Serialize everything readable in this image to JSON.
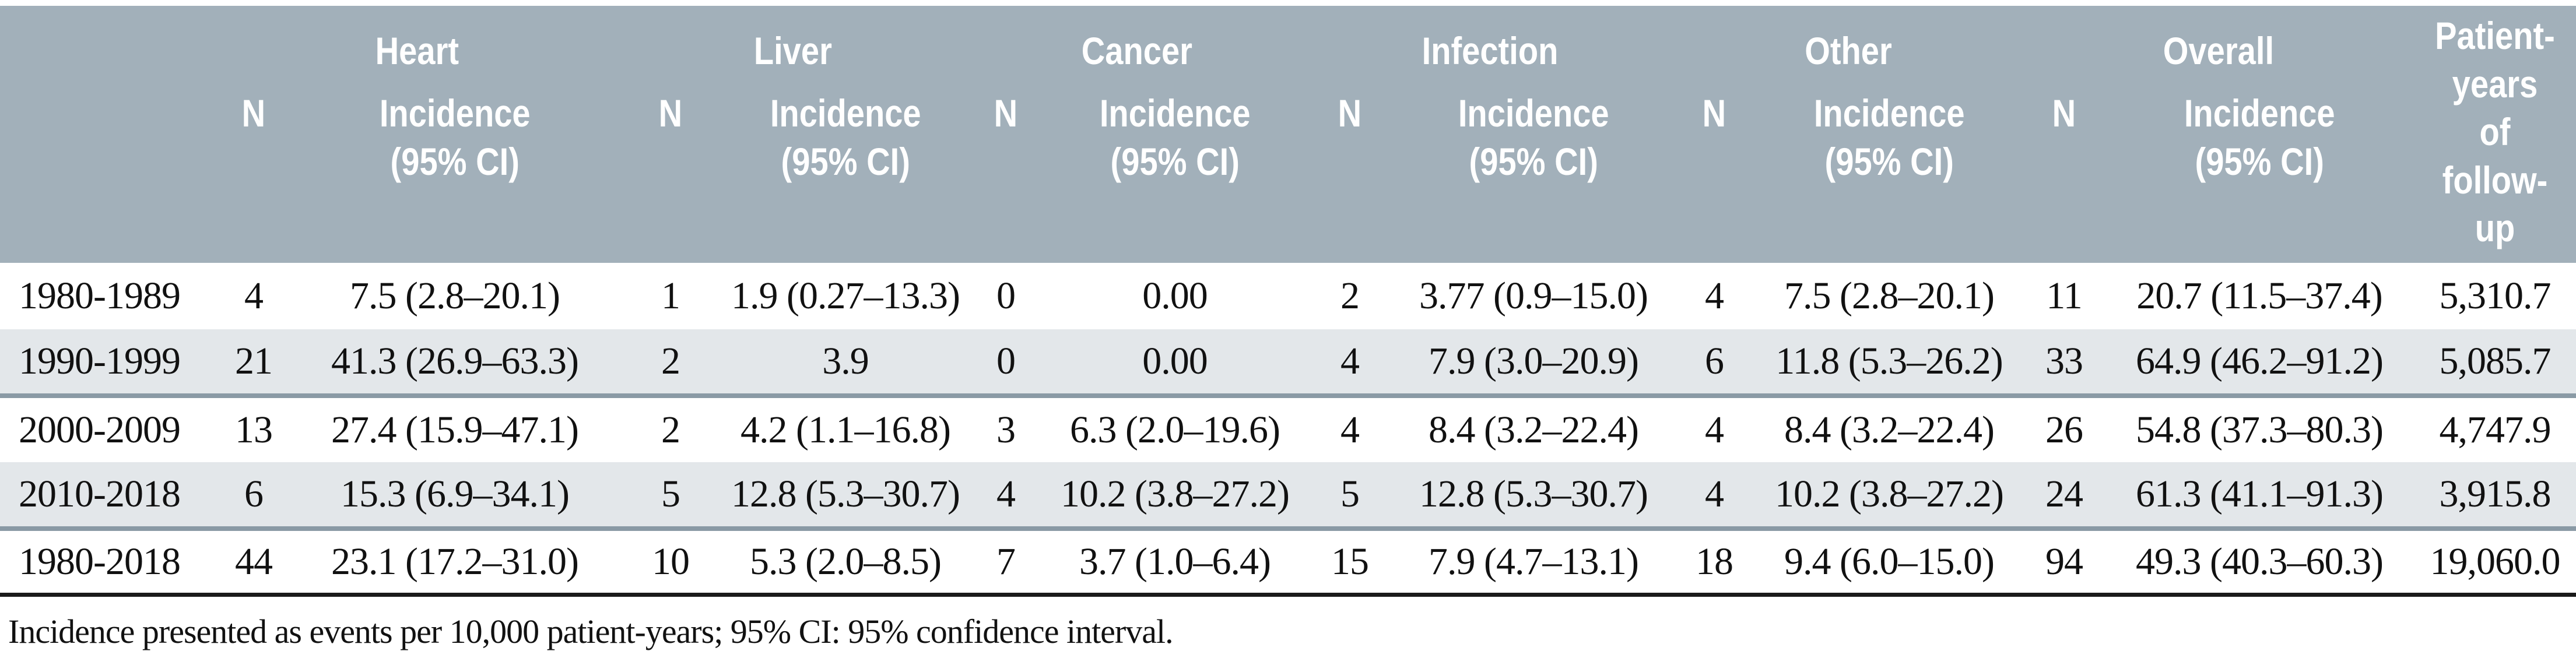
{
  "colors": {
    "header_bg": "#a2b0ba",
    "header_text": "#ffffff",
    "row_alt_bg": "#e3e7ea",
    "divider": "#8a9aa5",
    "bottom_rule": "#1a1a1a"
  },
  "table": {
    "groups": {
      "heart": "Heart",
      "liver": "Liver",
      "cancer": "Cancer",
      "infection": "Infection",
      "other": "Other",
      "overall": "Overall"
    },
    "sub_headers": {
      "n": "N",
      "incidence": "Incidence\n(95% CI)",
      "patient_years": "Patient-years\nof follow-up"
    },
    "rows": [
      {
        "period": "1980-1989",
        "heart_n": "4",
        "heart_inc": "7.5 (2.8–20.1)",
        "liver_n": "1",
        "liver_inc": "1.9 (0.27–13.3)",
        "cancer_n": "0",
        "cancer_inc": "0.00",
        "infection_n": "2",
        "infection_inc": "3.77 (0.9–15.0)",
        "other_n": "4",
        "other_inc": "7.5 (2.8–20.1)",
        "overall_n": "11",
        "overall_inc": "20.7 (11.5–37.4)",
        "py": "5,310.7"
      },
      {
        "period": "1990-1999",
        "heart_n": "21",
        "heart_inc": "41.3 (26.9–63.3)",
        "liver_n": "2",
        "liver_inc": "3.9",
        "cancer_n": "0",
        "cancer_inc": "0.00",
        "infection_n": "4",
        "infection_inc": "7.9 (3.0–20.9)",
        "other_n": "6",
        "other_inc": "11.8 (5.3–26.2)",
        "overall_n": "33",
        "overall_inc": "64.9 (46.2–91.2)",
        "py": "5,085.7"
      },
      {
        "period": "2000-2009",
        "heart_n": "13",
        "heart_inc": "27.4 (15.9–47.1)",
        "liver_n": "2",
        "liver_inc": "4.2 (1.1–16.8)",
        "cancer_n": "3",
        "cancer_inc": "6.3 (2.0–19.6)",
        "infection_n": "4",
        "infection_inc": "8.4 (3.2–22.4)",
        "other_n": "4",
        "other_inc": "8.4 (3.2–22.4)",
        "overall_n": "26",
        "overall_inc": "54.8 (37.3–80.3)",
        "py": "4,747.9"
      },
      {
        "period": "2010-2018",
        "heart_n": "6",
        "heart_inc": "15.3 (6.9–34.1)",
        "liver_n": "5",
        "liver_inc": "12.8 (5.3–30.7)",
        "cancer_n": "4",
        "cancer_inc": "10.2 (3.8–27.2)",
        "infection_n": "5",
        "infection_inc": "12.8 (5.3–30.7)",
        "other_n": "4",
        "other_inc": "10.2 (3.8–27.2)",
        "overall_n": "24",
        "overall_inc": "61.3 (41.1–91.3)",
        "py": "3,915.8"
      },
      {
        "period": "1980-2018",
        "heart_n": "44",
        "heart_inc": "23.1 (17.2–31.0)",
        "liver_n": "10",
        "liver_inc": "5.3 (2.0–8.5)",
        "cancer_n": "7",
        "cancer_inc": "3.7 (1.0–6.4)",
        "infection_n": "15",
        "infection_inc": "7.9 (4.7–13.1)",
        "other_n": "18",
        "other_inc": "9.4 (6.0–15.0)",
        "overall_n": "94",
        "overall_inc": "49.3 (40.3–60.3)",
        "py": "19,060.0"
      }
    ],
    "footnote": "Incidence presented as events per 10,000 patient-years; 95% CI: 95% confidence interval."
  }
}
